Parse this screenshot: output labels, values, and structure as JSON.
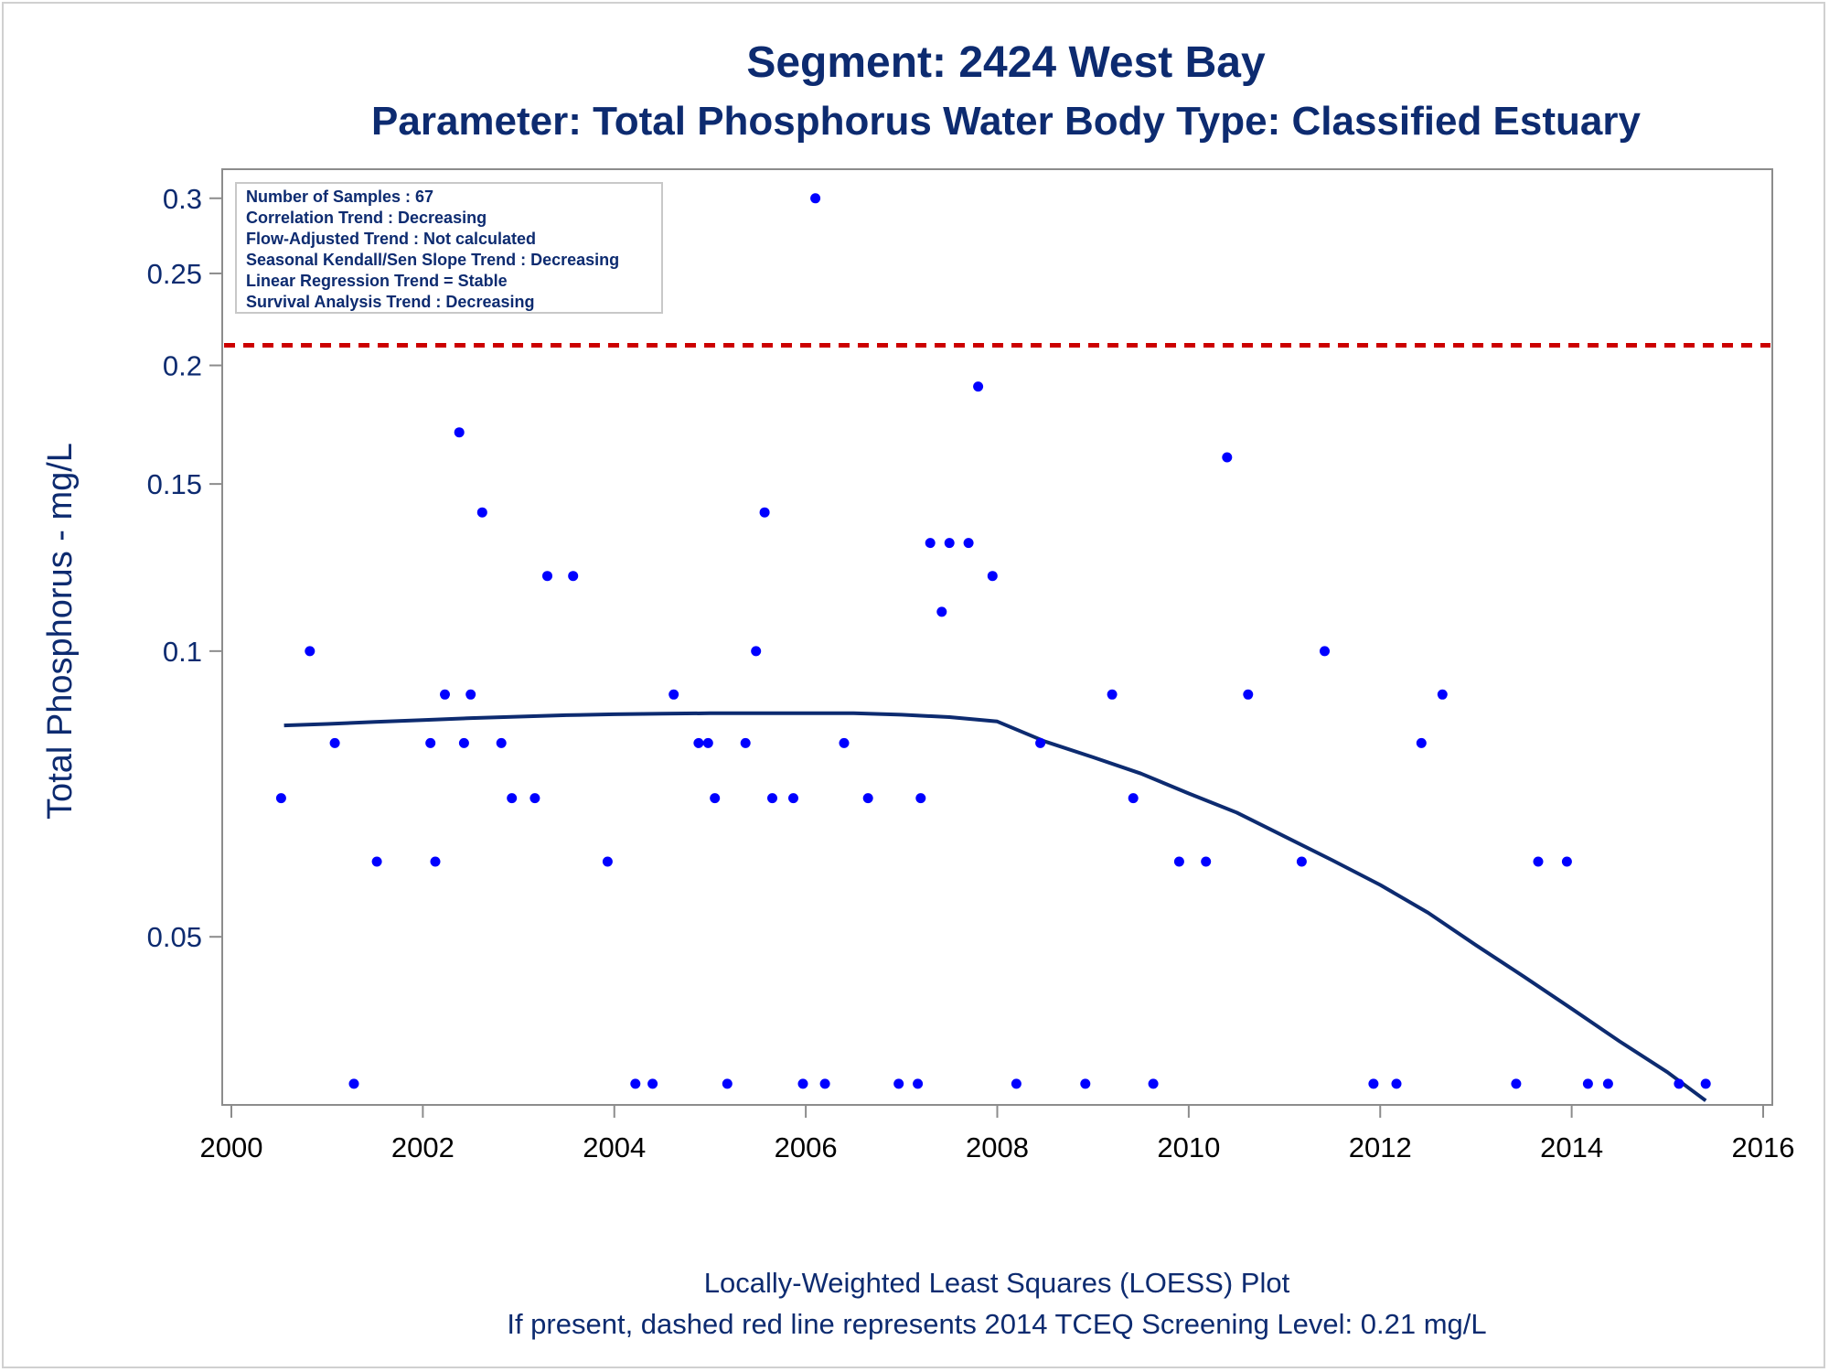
{
  "chart_data": {
    "type": "scatter",
    "title": "Segment: 2424  West Bay",
    "subtitle": "Parameter: Total Phosphorus   Water Body Type: Classified Estuary",
    "xlabel": "",
    "ylabel": "Total Phosphorus - mg/L",
    "xlim": [
      2000,
      2016
    ],
    "ylim": [
      0.034,
      0.31
    ],
    "y_scale": "log",
    "x_ticks": [
      "2000",
      "2002",
      "2004",
      "2006",
      "2008",
      "2010",
      "2012",
      "2014",
      "2016"
    ],
    "y_ticks": [
      "0.05",
      "0.1",
      "0.15",
      "0.2",
      "0.25",
      "0.3"
    ],
    "grid": false,
    "legend": null,
    "stats_box": [
      "Number of Samples : 67",
      "Correlation Trend : Decreasing",
      "Flow-Adjusted Trend : Not calculated",
      "Seasonal Kendall/Sen Slope Trend : Decreasing",
      "Linear Regression Trend = Stable",
      "Survival Analysis Trend : Decreasing"
    ],
    "reference_line": {
      "y": 0.21,
      "color": "#cc0000",
      "style": "dashed"
    },
    "series": [
      {
        "type": "scatter",
        "color": "#0000ff",
        "points": [
          [
            2000.52,
            0.07
          ],
          [
            2000.82,
            0.1
          ],
          [
            2001.08,
            0.08
          ],
          [
            2001.28,
            0.035
          ],
          [
            2001.52,
            0.06
          ],
          [
            2002.08,
            0.08
          ],
          [
            2002.13,
            0.06
          ],
          [
            2002.23,
            0.09
          ],
          [
            2002.38,
            0.17
          ],
          [
            2002.43,
            0.08
          ],
          [
            2002.5,
            0.09
          ],
          [
            2002.62,
            0.14
          ],
          [
            2002.82,
            0.08
          ],
          [
            2002.93,
            0.07
          ],
          [
            2003.17,
            0.07
          ],
          [
            2003.3,
            0.12
          ],
          [
            2003.57,
            0.12
          ],
          [
            2003.93,
            0.06
          ],
          [
            2004.22,
            0.035
          ],
          [
            2004.4,
            0.035
          ],
          [
            2004.62,
            0.09
          ],
          [
            2004.88,
            0.08
          ],
          [
            2004.98,
            0.08
          ],
          [
            2005.05,
            0.07
          ],
          [
            2005.18,
            0.035
          ],
          [
            2005.37,
            0.08
          ],
          [
            2005.48,
            0.1
          ],
          [
            2005.57,
            0.14
          ],
          [
            2005.65,
            0.07
          ],
          [
            2005.87,
            0.07
          ],
          [
            2005.97,
            0.035
          ],
          [
            2006.1,
            0.3
          ],
          [
            2006.2,
            0.035
          ],
          [
            2006.4,
            0.08
          ],
          [
            2006.65,
            0.07
          ],
          [
            2006.97,
            0.035
          ],
          [
            2007.17,
            0.035
          ],
          [
            2007.2,
            0.07
          ],
          [
            2007.3,
            0.13
          ],
          [
            2007.42,
            0.11
          ],
          [
            2007.5,
            0.13
          ],
          [
            2007.7,
            0.13
          ],
          [
            2007.8,
            0.19
          ],
          [
            2007.95,
            0.12
          ],
          [
            2008.2,
            0.035
          ],
          [
            2008.45,
            0.08
          ],
          [
            2008.92,
            0.035
          ],
          [
            2009.2,
            0.09
          ],
          [
            2009.42,
            0.07
          ],
          [
            2009.63,
            0.035
          ],
          [
            2009.9,
            0.06
          ],
          [
            2010.18,
            0.06
          ],
          [
            2010.4,
            0.16
          ],
          [
            2010.62,
            0.09
          ],
          [
            2011.18,
            0.06
          ],
          [
            2011.42,
            0.1
          ],
          [
            2011.93,
            0.035
          ],
          [
            2012.17,
            0.035
          ],
          [
            2012.43,
            0.08
          ],
          [
            2012.65,
            0.09
          ],
          [
            2013.42,
            0.035
          ],
          [
            2013.65,
            0.06
          ],
          [
            2013.95,
            0.06
          ],
          [
            2014.17,
            0.035
          ],
          [
            2014.38,
            0.035
          ],
          [
            2015.12,
            0.035
          ],
          [
            2015.4,
            0.035
          ]
        ]
      },
      {
        "type": "line",
        "color": "#0d2b70",
        "name": "",
        "points": [
          [
            2000.55,
            0.0835
          ],
          [
            2001.0,
            0.0838
          ],
          [
            2001.5,
            0.0842
          ],
          [
            2002.0,
            0.0846
          ],
          [
            2002.5,
            0.085
          ],
          [
            2003.0,
            0.0853
          ],
          [
            2003.5,
            0.0856
          ],
          [
            2004.0,
            0.0858
          ],
          [
            2004.5,
            0.0859
          ],
          [
            2005.0,
            0.086
          ],
          [
            2005.5,
            0.086
          ],
          [
            2006.0,
            0.086
          ],
          [
            2006.5,
            0.086
          ],
          [
            2007.0,
            0.0857
          ],
          [
            2007.5,
            0.0852
          ],
          [
            2008.0,
            0.0843
          ],
          [
            2008.5,
            0.0803
          ],
          [
            2009.0,
            0.0773
          ],
          [
            2009.5,
            0.0743
          ],
          [
            2010.0,
            0.0708
          ],
          [
            2010.5,
            0.0676
          ],
          [
            2011.0,
            0.0638
          ],
          [
            2011.5,
            0.0602
          ],
          [
            2012.0,
            0.0567
          ],
          [
            2012.5,
            0.053
          ],
          [
            2013.0,
            0.049
          ],
          [
            2013.5,
            0.0454
          ],
          [
            2014.0,
            0.042
          ],
          [
            2014.5,
            0.0388
          ],
          [
            2015.0,
            0.036
          ],
          [
            2015.4,
            0.0336
          ]
        ]
      }
    ]
  },
  "footnotes": {
    "line1": "Locally-Weighted Least Squares (LOESS) Plot",
    "line2": "If present, dashed red line represents 2014 TCEQ Screening Level: 0.21 mg/L"
  }
}
